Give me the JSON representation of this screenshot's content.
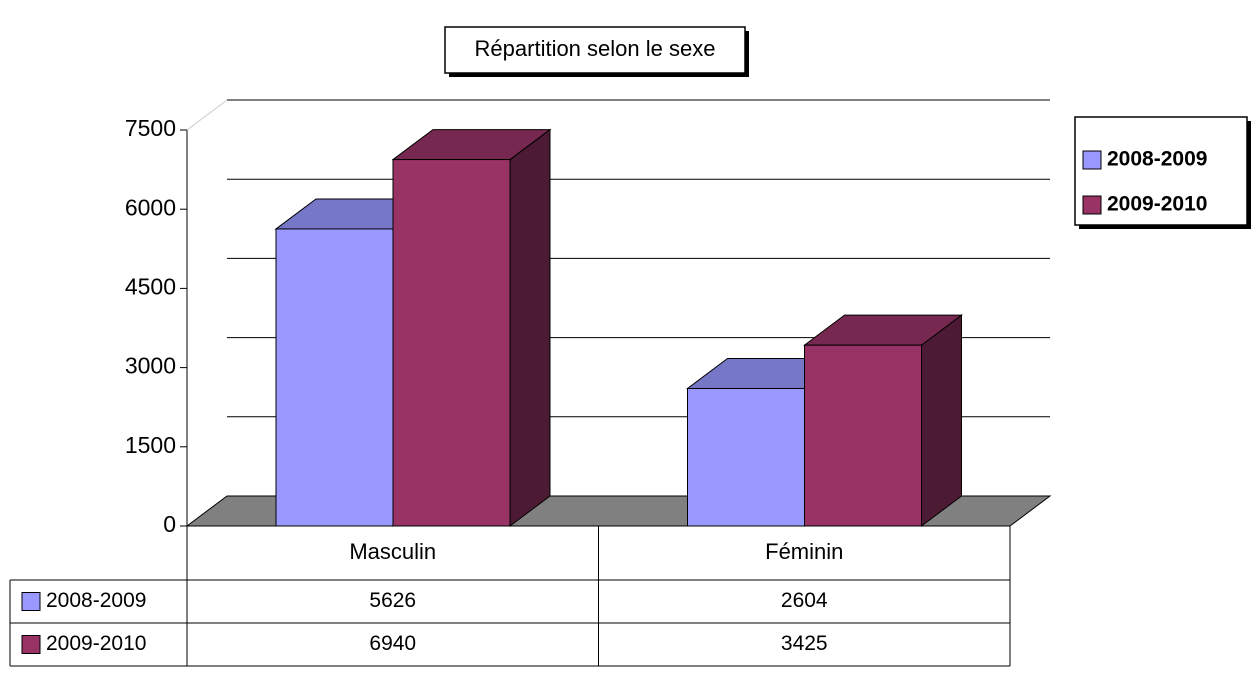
{
  "chart_data": {
    "type": "bar3d",
    "title": "Répartition selon le sexe",
    "categories": [
      "Masculin",
      "Féminin"
    ],
    "series": [
      {
        "name": "2008-2009",
        "color": "#9999ff",
        "values": [
          5626,
          2604
        ]
      },
      {
        "name": "2009-2010",
        "color": "#993366",
        "values": [
          6940,
          3425
        ]
      }
    ],
    "ylim": [
      0,
      7500
    ],
    "yticks": [
      0,
      1500,
      3000,
      4500,
      6000,
      7500
    ],
    "grid": true,
    "legend": "right",
    "data_table": true
  }
}
